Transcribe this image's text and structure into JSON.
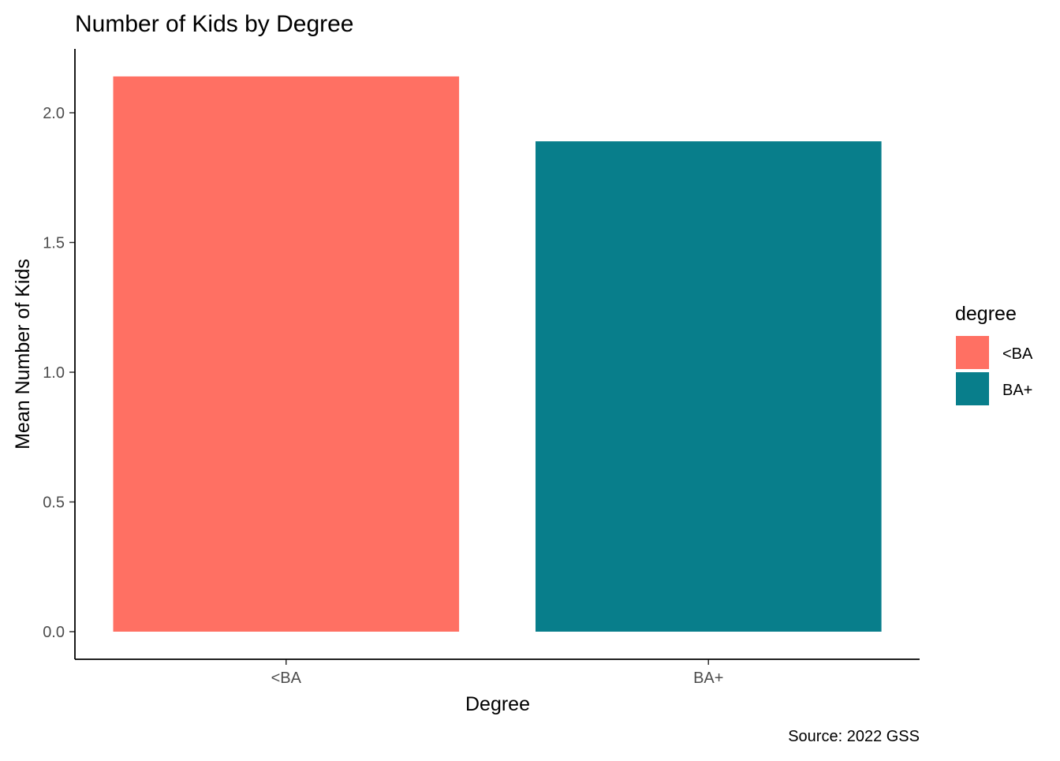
{
  "chart_data": {
    "type": "bar",
    "title": "Number of Kids by Degree",
    "xlabel": "Degree",
    "ylabel": "Mean Number of Kids",
    "caption": "Source: 2022 GSS",
    "categories": [
      "<BA",
      "BA+"
    ],
    "values": [
      2.14,
      1.89
    ],
    "colors": [
      "#FF7063",
      "#087E8B"
    ],
    "ylim": [
      0,
      2.14
    ],
    "yticks": [
      0.0,
      0.5,
      1.0,
      1.5,
      2.0
    ],
    "ytick_labels": [
      "0.0",
      "0.5",
      "1.0",
      "1.5",
      "2.0"
    ],
    "grid": false,
    "legend": {
      "title": "degree",
      "position": "right",
      "entries": [
        "<BA",
        "BA+"
      ]
    }
  }
}
